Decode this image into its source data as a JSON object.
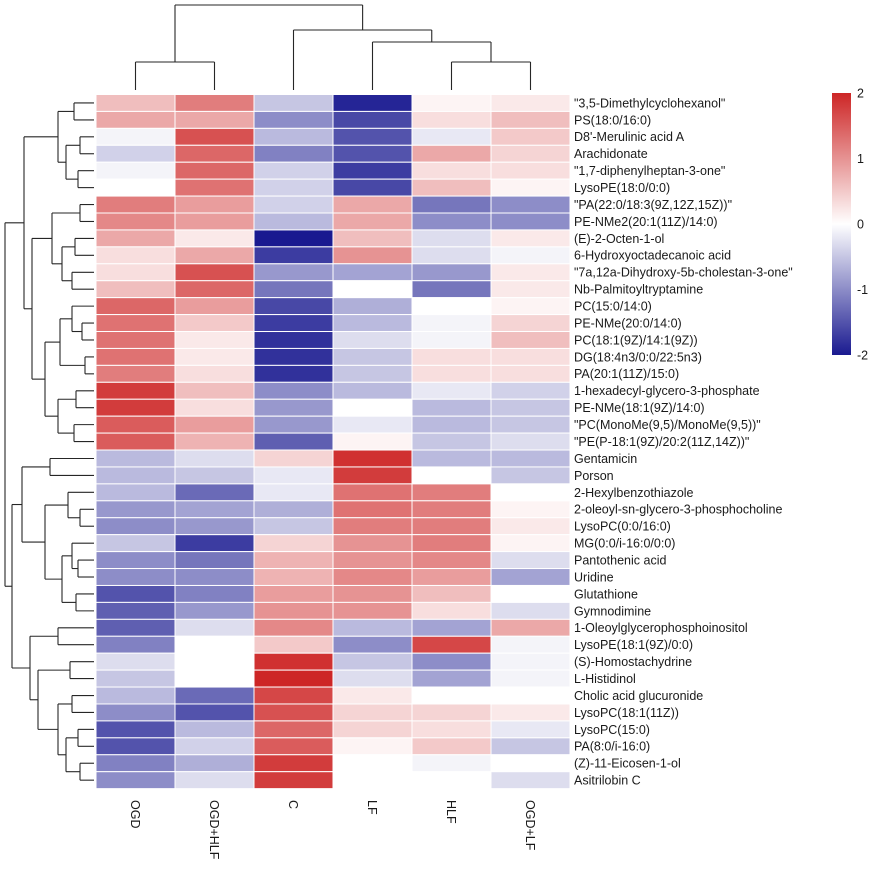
{
  "chart_data": {
    "type": "heatmap",
    "legend_position": "right",
    "columns": [
      "OGD",
      "OGD+HLF",
      "C",
      "LF",
      "HLF",
      "OGD+LF"
    ],
    "rows": [
      "\"3,5-Dimethylcyclohexanol\"",
      "PS(18:0/16:0)",
      "D8'-Merulinic acid A",
      "Arachidonate",
      "\"1,7-diphenylheptan-3-one\"",
      "LysoPE(18:0/0:0)",
      "\"PA(22:0/18:3(9Z,12Z,15Z))\"",
      "PE-NMe2(20:1(11Z)/14:0)",
      "(E)-2-Octen-1-ol",
      "6-Hydroxyoctadecanoic acid",
      "\"7a,12a-Dihydroxy-5b-cholestan-3-one\"",
      "Nb-Palmitoyltryptamine",
      "PC(15:0/14:0)",
      "PE-NMe(20:0/14:0)",
      "PC(18:1(9Z)/14:1(9Z))",
      "DG(18:4n3/0:0/22:5n3)",
      "PA(20:1(11Z)/15:0)",
      "1-hexadecyl-glycero-3-phosphate",
      "PE-NMe(18:1(9Z)/14:0)",
      "\"PC(MonoMe(9,5)/MonoMe(9,5))\"",
      "\"PE(P-18:1(9Z)/20:2(11Z,14Z))\"",
      "Gentamicin",
      "Porson",
      "2-Hexylbenzothiazole",
      "2-oleoyl-sn-glycero-3-phosphocholine",
      "LysoPC(0:0/16:0)",
      "MG(0:0/i-16:0/0:0)",
      "Pantothenic acid",
      "Uridine",
      "Glutathione",
      "Gymnodimine",
      "1-Oleoylglycerophosphoinositol",
      "LysoPE(18:1(9Z)/0:0)",
      "(S)-Homostachydrine",
      "L-Histidinol",
      "Cholic acid glucuronide",
      "LysoPC(18:1(11Z))",
      "LysoPC(15:0)",
      "PA(8:0/i-16:0)",
      "(Z)-11-Eicosen-1-ol",
      "Asitrilobin C"
    ],
    "values": [
      [
        0.6,
        1.2,
        -0.5,
        -1.9,
        0.1,
        0.2
      ],
      [
        0.8,
        0.8,
        -1.0,
        -1.6,
        0.3,
        0.6
      ],
      [
        -0.1,
        1.6,
        -0.6,
        -1.5,
        -0.2,
        0.5
      ],
      [
        -0.4,
        1.4,
        -1.1,
        -1.5,
        0.8,
        0.4
      ],
      [
        -0.1,
        1.4,
        -0.4,
        -1.7,
        0.3,
        0.3
      ],
      [
        0.0,
        1.3,
        -0.4,
        -1.6,
        0.6,
        0.1
      ],
      [
        1.2,
        0.9,
        -0.4,
        0.8,
        -1.2,
        -1.0
      ],
      [
        1.1,
        0.9,
        -0.6,
        0.8,
        -1.0,
        -1.0
      ],
      [
        0.8,
        0.2,
        -2.0,
        0.6,
        -0.3,
        0.2
      ],
      [
        0.3,
        0.8,
        -1.7,
        1.0,
        -0.3,
        -0.1
      ],
      [
        0.3,
        1.6,
        -0.9,
        -0.8,
        -0.9,
        0.2
      ],
      [
        0.6,
        1.4,
        -1.2,
        0.0,
        -1.2,
        0.2
      ],
      [
        1.4,
        0.9,
        -1.6,
        -0.7,
        0.0,
        0.1
      ],
      [
        1.3,
        0.5,
        -1.7,
        -0.6,
        -0.1,
        0.4
      ],
      [
        1.3,
        0.2,
        -1.8,
        -0.3,
        -0.1,
        0.6
      ],
      [
        1.3,
        0.2,
        -1.8,
        -0.5,
        0.3,
        0.3
      ],
      [
        1.2,
        0.3,
        -1.8,
        -0.5,
        0.3,
        0.3
      ],
      [
        1.8,
        0.6,
        -1.0,
        -0.6,
        -0.2,
        -0.4
      ],
      [
        1.8,
        0.3,
        -0.9,
        0.0,
        -0.6,
        -0.5
      ],
      [
        1.5,
        0.9,
        -0.9,
        -0.2,
        -0.6,
        -0.5
      ],
      [
        1.5,
        0.7,
        -1.4,
        0.1,
        -0.5,
        -0.3
      ],
      [
        -0.6,
        -0.3,
        0.4,
        1.9,
        -0.6,
        -0.6
      ],
      [
        -0.6,
        -0.5,
        -0.2,
        1.8,
        0.0,
        -0.5
      ],
      [
        -0.6,
        -1.3,
        -0.2,
        1.3,
        1.2,
        0.0
      ],
      [
        -0.9,
        -0.8,
        -0.7,
        1.3,
        1.2,
        0.1
      ],
      [
        -1.0,
        -0.9,
        -0.5,
        1.2,
        1.2,
        0.2
      ],
      [
        -0.5,
        -1.7,
        0.4,
        1.0,
        1.2,
        0.1
      ],
      [
        -1.0,
        -1.2,
        0.7,
        1.0,
        1.1,
        -0.3
      ],
      [
        -1.0,
        -1.0,
        0.7,
        1.1,
        0.9,
        -0.8
      ],
      [
        -1.5,
        -1.1,
        0.9,
        1.0,
        0.6,
        0.0
      ],
      [
        -1.4,
        -0.9,
        1.0,
        1.0,
        0.3,
        -0.3
      ],
      [
        -1.4,
        -0.3,
        1.1,
        -0.6,
        -0.8,
        0.8
      ],
      [
        -1.1,
        0.0,
        0.5,
        -1.0,
        1.7,
        -0.1
      ],
      [
        -0.3,
        0.0,
        1.9,
        -0.5,
        -1.0,
        -0.1
      ],
      [
        -0.5,
        0.0,
        2.0,
        -0.3,
        -0.8,
        -0.1
      ],
      [
        -0.6,
        -1.3,
        1.7,
        0.2,
        0.0,
        0.0
      ],
      [
        -1.0,
        -1.5,
        1.6,
        0.4,
        0.4,
        0.2
      ],
      [
        -1.5,
        -0.6,
        1.4,
        0.4,
        0.3,
        -0.2
      ],
      [
        -1.5,
        -0.4,
        1.5,
        0.1,
        0.5,
        -0.5
      ],
      [
        -1.1,
        -0.7,
        1.8,
        0.0,
        -0.1,
        0.0
      ],
      [
        -1.0,
        -0.3,
        1.8,
        0.0,
        0.0,
        -0.3
      ]
    ],
    "scale_range": [
      -2,
      2
    ],
    "legend_ticks": [
      "2",
      "1",
      "0",
      "-1",
      "-2"
    ],
    "colors": {
      "low": "#1a1a90",
      "mid": "#ffffff",
      "high": "#cd2626"
    }
  }
}
